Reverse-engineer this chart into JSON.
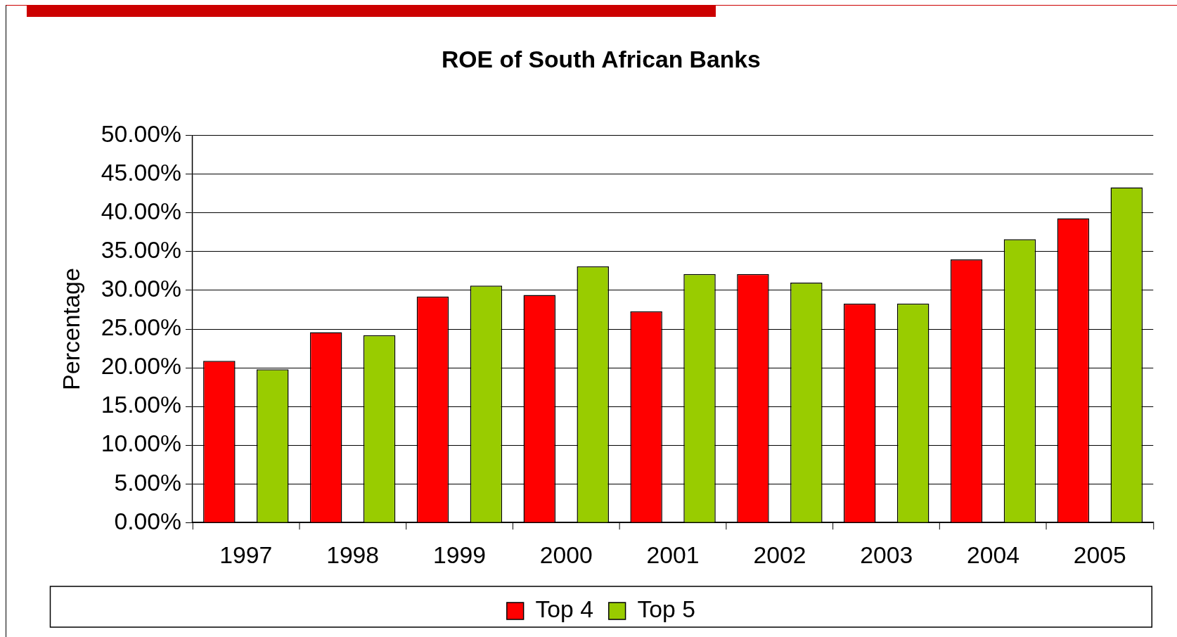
{
  "chart_data": {
    "type": "bar",
    "title": "ROE of South African Banks",
    "ylabel": "Percentage",
    "categories": [
      "1997",
      "1998",
      "1999",
      "2000",
      "2001",
      "2002",
      "2003",
      "2004",
      "2005"
    ],
    "series": [
      {
        "name": "Top 4",
        "color": "#ff0000",
        "values": [
          20.9,
          24.6,
          29.2,
          29.4,
          27.3,
          32.1,
          28.3,
          34.0,
          39.3
        ]
      },
      {
        "name": "Top 5",
        "color": "#99cc00",
        "values": [
          19.8,
          24.2,
          30.6,
          33.1,
          32.1,
          31.0,
          28.3,
          36.6,
          43.3
        ]
      }
    ],
    "ylim": [
      0,
      50
    ],
    "yticks": [
      {
        "value": 0,
        "label": "0.00%"
      },
      {
        "value": 5,
        "label": "5.00%"
      },
      {
        "value": 10,
        "label": "10.00%"
      },
      {
        "value": 15,
        "label": "15.00%"
      },
      {
        "value": 20,
        "label": "20.00%"
      },
      {
        "value": 25,
        "label": "25.00%"
      },
      {
        "value": 30,
        "label": "30.00%"
      },
      {
        "value": 35,
        "label": "35.00%"
      },
      {
        "value": 40,
        "label": "40.00%"
      },
      {
        "value": 45,
        "label": "45.00%"
      },
      {
        "value": 50,
        "label": "50.00%"
      }
    ],
    "grid": "y",
    "legend": "bottom"
  }
}
